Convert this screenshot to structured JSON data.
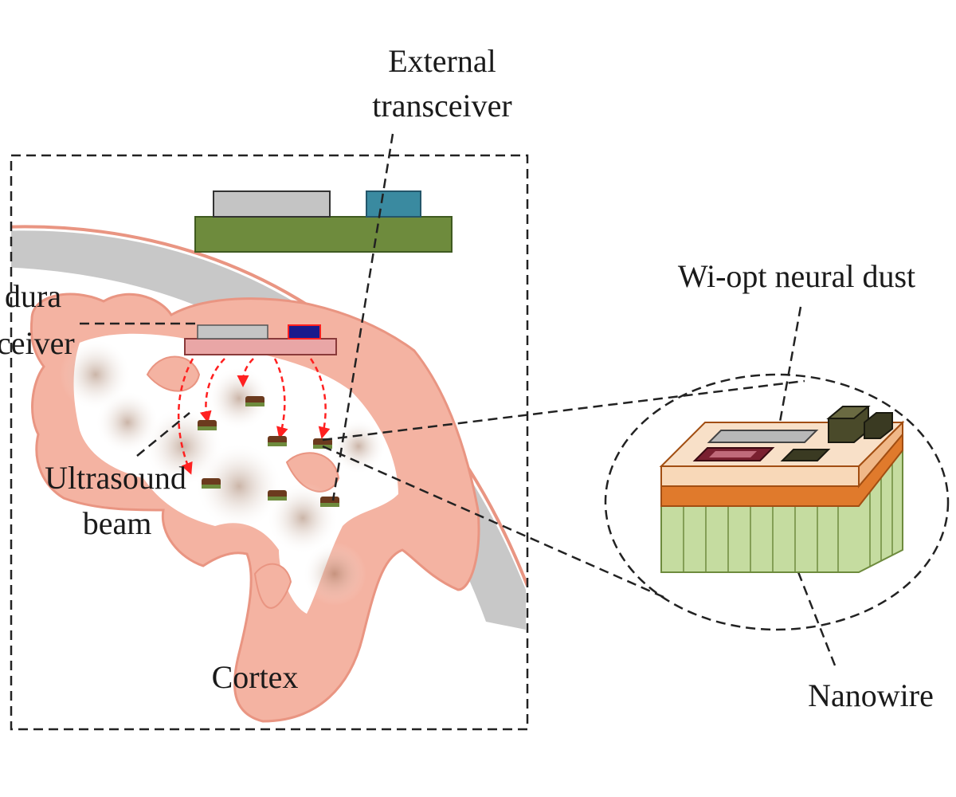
{
  "labels": {
    "external_transceiver_line1": "External",
    "external_transceiver_line2": "transceiver",
    "subdura_line1": "dura",
    "subdura_line2": "ceiver",
    "ultrasound_line1": "Ultrasound",
    "ultrasound_line2": "beam",
    "cortex": "Cortex",
    "neural_dust": "Wi-opt neural dust",
    "nanowire": "Nanowire"
  },
  "colors": {
    "cortex_tissue": "#f4b3a2",
    "cortex_edge": "#e99582",
    "skull": "#c8c8c8",
    "external_board": "#6e8b3d",
    "external_chip_gray": "#c4c4c4",
    "external_chip_teal": "#3a8aa0",
    "subdura_board": "#e9a6a6",
    "subdura_chip_blue": "#1a1a8c",
    "beam_arrows": "#ff2020",
    "nanowire_green": "#c5dca0",
    "dust_orange": "#e07a2c",
    "dust_top": "#f8d8b8"
  }
}
